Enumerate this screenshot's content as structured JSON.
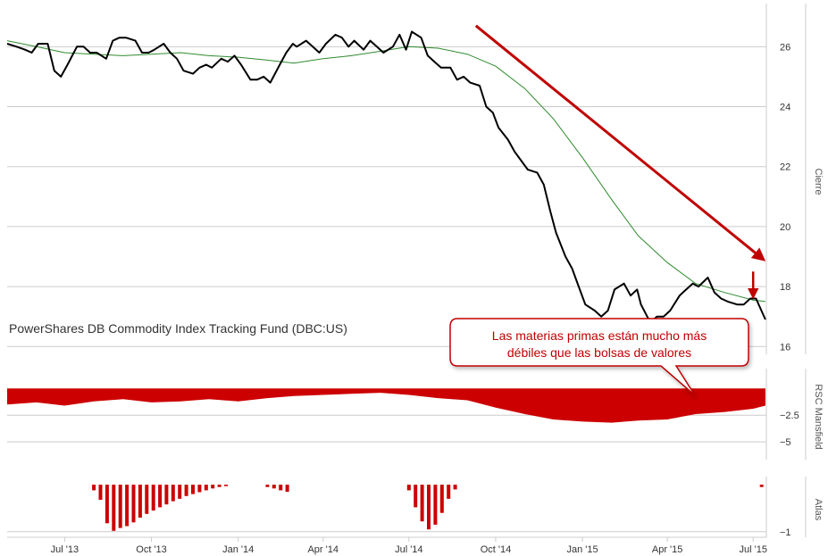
{
  "chart_data": {
    "type": "line",
    "title": "PowerShares DB Commodity Index Tracking Fund (DBC:US)",
    "colors": {
      "price": "#000000",
      "moving_average": "#2e8b2e",
      "rsc_fill": "#cc0000",
      "atlas_bars": "#cc0000",
      "annotation": "#c00000",
      "grid": "#cccccc"
    },
    "x_axis": {
      "type": "date",
      "range": [
        "2013-05-01",
        "2015-07-15"
      ],
      "ticks": [
        {
          "date": "2013-07-01",
          "label": "Jul '13"
        },
        {
          "date": "2013-10-01",
          "label": "Oct '13"
        },
        {
          "date": "2014-01-01",
          "label": "Jan '14"
        },
        {
          "date": "2014-04-01",
          "label": "Apr '14"
        },
        {
          "date": "2014-07-01",
          "label": "Jul '14"
        },
        {
          "date": "2014-10-01",
          "label": "Oct '14"
        },
        {
          "date": "2015-01-01",
          "label": "Jan '15"
        },
        {
          "date": "2015-04-01",
          "label": "Apr '15"
        },
        {
          "date": "2015-07-01",
          "label": "Jul '15"
        }
      ]
    },
    "panels": [
      {
        "id": "price",
        "ylabel": "Cierre",
        "ylim": [
          15.8,
          27.2
        ],
        "yticks": [
          {
            "value": 26,
            "label": "26"
          },
          {
            "value": 24,
            "label": "24"
          },
          {
            "value": 22,
            "label": "22"
          },
          {
            "value": 20,
            "label": "20"
          },
          {
            "value": 18,
            "label": "18"
          },
          {
            "value": 16,
            "label": "16"
          }
        ],
        "series": [
          {
            "kind": "price",
            "dates": [
              "2013-05-01",
              "2013-05-11",
              "2013-05-20",
              "2013-05-27",
              "2013-06-03",
              "2013-06-13",
              "2013-06-20",
              "2013-06-27",
              "2013-07-04",
              "2013-07-14",
              "2013-07-21",
              "2013-07-28",
              "2013-08-04",
              "2013-08-14",
              "2013-08-21",
              "2013-08-28",
              "2013-09-04",
              "2013-09-14",
              "2013-09-21",
              "2013-09-28",
              "2013-10-04",
              "2013-10-14",
              "2013-10-21",
              "2013-10-28",
              "2013-11-04",
              "2013-11-14",
              "2013-11-21",
              "2013-11-28",
              "2013-12-04",
              "2013-12-14",
              "2013-12-21",
              "2013-12-28",
              "2014-01-04",
              "2014-01-14",
              "2014-01-21",
              "2014-01-28",
              "2014-02-04",
              "2014-02-14",
              "2014-02-21",
              "2014-02-28",
              "2014-03-04",
              "2014-03-14",
              "2014-03-21",
              "2014-03-28",
              "2014-04-04",
              "2014-04-14",
              "2014-04-21",
              "2014-04-28",
              "2014-05-04",
              "2014-05-14",
              "2014-05-21",
              "2014-05-28",
              "2014-06-04",
              "2014-06-14",
              "2014-06-21",
              "2014-06-28",
              "2014-07-04",
              "2014-07-14",
              "2014-07-21",
              "2014-07-28",
              "2014-08-04",
              "2014-08-14",
              "2014-08-21",
              "2014-08-28",
              "2014-09-04",
              "2014-09-14",
              "2014-09-21",
              "2014-09-28",
              "2014-10-04",
              "2014-10-14",
              "2014-10-21",
              "2014-10-28",
              "2014-11-04",
              "2014-11-14",
              "2014-11-21",
              "2014-11-28",
              "2014-12-04",
              "2014-12-14",
              "2014-12-21",
              "2014-12-28",
              "2015-01-04",
              "2015-01-14",
              "2015-01-21",
              "2015-01-28",
              "2015-02-04",
              "2015-02-14",
              "2015-02-21",
              "2015-02-28",
              "2015-03-04",
              "2015-03-14",
              "2015-03-21",
              "2015-03-28",
              "2015-04-04",
              "2015-04-14",
              "2015-04-21",
              "2015-04-28",
              "2015-05-04",
              "2015-05-14",
              "2015-05-21",
              "2015-05-28",
              "2015-06-04",
              "2015-06-14",
              "2015-06-21",
              "2015-06-28",
              "2015-07-04",
              "2015-07-14"
            ],
            "values": [
              26.1,
              26.0,
              25.9,
              25.8,
              26.1,
              26.1,
              25.2,
              25.0,
              25.4,
              26.0,
              26.0,
              25.8,
              25.8,
              25.6,
              26.2,
              26.3,
              26.3,
              26.2,
              25.8,
              25.8,
              25.9,
              26.1,
              25.8,
              25.6,
              25.2,
              25.1,
              25.3,
              25.4,
              25.3,
              25.6,
              25.5,
              25.7,
              25.4,
              24.9,
              24.9,
              25.0,
              24.8,
              25.4,
              25.8,
              26.1,
              26.0,
              26.2,
              26.0,
              25.8,
              26.1,
              26.4,
              26.3,
              26.0,
              26.2,
              25.9,
              26.2,
              26.0,
              25.8,
              26.0,
              26.4,
              25.9,
              26.5,
              26.3,
              25.7,
              25.5,
              25.3,
              25.3,
              24.9,
              25.0,
              24.8,
              24.7,
              24.0,
              23.8,
              23.3,
              22.9,
              22.5,
              22.2,
              21.9,
              21.8,
              21.4,
              20.5,
              19.8,
              19.0,
              18.6,
              18.0,
              17.4,
              17.2,
              17.0,
              17.2,
              17.9,
              18.1,
              17.7,
              17.9,
              17.4,
              16.8,
              17.0,
              17.0,
              17.2,
              17.7,
              17.9,
              18.1,
              18.0,
              18.3,
              17.8,
              17.6,
              17.5,
              17.4,
              17.4,
              17.6,
              17.6,
              16.9
            ]
          },
          {
            "kind": "moving_average",
            "dates": [
              "2013-05-01",
              "2013-06-01",
              "2013-07-01",
              "2013-08-01",
              "2013-09-01",
              "2013-10-01",
              "2013-11-01",
              "2013-12-01",
              "2014-01-01",
              "2014-02-01",
              "2014-03-01",
              "2014-04-01",
              "2014-05-01",
              "2014-06-01",
              "2014-07-01",
              "2014-08-01",
              "2014-09-01",
              "2014-10-01",
              "2014-11-01",
              "2014-12-01",
              "2015-01-01",
              "2015-02-01",
              "2015-03-01",
              "2015-04-01",
              "2015-05-01",
              "2015-06-01",
              "2015-07-01",
              "2015-07-14"
            ],
            "values": [
              26.2,
              26.0,
              25.8,
              25.75,
              25.7,
              25.75,
              25.8,
              25.7,
              25.65,
              25.55,
              25.45,
              25.6,
              25.7,
              25.85,
              26.0,
              25.95,
              25.75,
              25.35,
              24.6,
              23.6,
              22.3,
              20.9,
              19.7,
              18.8,
              18.1,
              17.8,
              17.55,
              17.5
            ]
          }
        ]
      },
      {
        "id": "rsc",
        "ylabel": "RSC Mansfield",
        "ylim": [
          -6.5,
          1.2
        ],
        "yticks": [
          {
            "value": -2.5,
            "label": "−2.5"
          },
          {
            "value": -5,
            "label": "−5"
          }
        ],
        "series": [
          {
            "kind": "rsc_area",
            "dates": [
              "2013-05-01",
              "2013-06-01",
              "2013-07-01",
              "2013-08-01",
              "2013-09-01",
              "2013-10-01",
              "2013-11-01",
              "2013-12-01",
              "2014-01-01",
              "2014-02-01",
              "2014-03-01",
              "2014-04-01",
              "2014-05-01",
              "2014-06-01",
              "2014-07-01",
              "2014-08-01",
              "2014-09-01",
              "2014-10-01",
              "2014-11-01",
              "2014-12-01",
              "2015-01-01",
              "2015-02-01",
              "2015-03-01",
              "2015-04-01",
              "2015-05-01",
              "2015-06-01",
              "2015-07-01",
              "2015-07-14"
            ],
            "values": [
              -1.5,
              -1.3,
              -1.6,
              -1.2,
              -1.0,
              -1.3,
              -1.2,
              -1.0,
              -1.2,
              -0.9,
              -0.7,
              -0.6,
              -0.5,
              -0.4,
              -0.6,
              -0.9,
              -1.1,
              -1.8,
              -2.4,
              -2.9,
              -3.1,
              -3.2,
              -3.0,
              -2.9,
              -2.4,
              -2.2,
              -1.9,
              -1.6
            ]
          }
        ]
      },
      {
        "id": "atlas",
        "ylabel": "Atlas",
        "ylim": [
          -1.08,
          0.02
        ],
        "yticks": [
          {
            "value": -1,
            "label": "−1"
          }
        ],
        "series": [
          {
            "kind": "atlas_bars",
            "dates": [
              "2013-08-01",
              "2013-08-08",
              "2013-08-15",
              "2013-08-22",
              "2013-08-29",
              "2013-09-05",
              "2013-09-12",
              "2013-09-19",
              "2013-09-26",
              "2013-10-03",
              "2013-10-10",
              "2013-10-17",
              "2013-10-24",
              "2013-10-31",
              "2013-11-07",
              "2013-11-14",
              "2013-11-21",
              "2013-11-28",
              "2013-12-05",
              "2013-12-12",
              "2013-12-19",
              "2014-02-01",
              "2014-02-08",
              "2014-02-15",
              "2014-02-22",
              "2014-07-01",
              "2014-07-08",
              "2014-07-15",
              "2014-07-22",
              "2014-07-29",
              "2014-08-05",
              "2014-08-12",
              "2014-08-19",
              "2015-07-10"
            ],
            "values": [
              -0.12,
              -0.32,
              -0.82,
              -0.98,
              -0.92,
              -0.88,
              -0.8,
              -0.7,
              -0.62,
              -0.55,
              -0.48,
              -0.42,
              -0.35,
              -0.3,
              -0.24,
              -0.2,
              -0.16,
              -0.12,
              -0.08,
              -0.05,
              -0.03,
              -0.05,
              -0.08,
              -0.12,
              -0.15,
              -0.12,
              -0.48,
              -0.78,
              -0.95,
              -0.85,
              -0.6,
              -0.3,
              -0.1,
              -0.05
            ]
          }
        ]
      }
    ],
    "annotations": {
      "callout_lines": [
        "Las materias primas están mucho más",
        "débiles que las bolsas de valores"
      ],
      "trend_arrow": {
        "from": {
          "date": "2014-09-10",
          "value": 26.7
        },
        "to": {
          "date": "2015-07-12",
          "value": 18.9
        }
      },
      "small_arrow": {
        "from": {
          "date": "2015-07-01",
          "value": 18.5
        },
        "to": {
          "date": "2015-07-01",
          "value": 17.65
        }
      }
    }
  }
}
